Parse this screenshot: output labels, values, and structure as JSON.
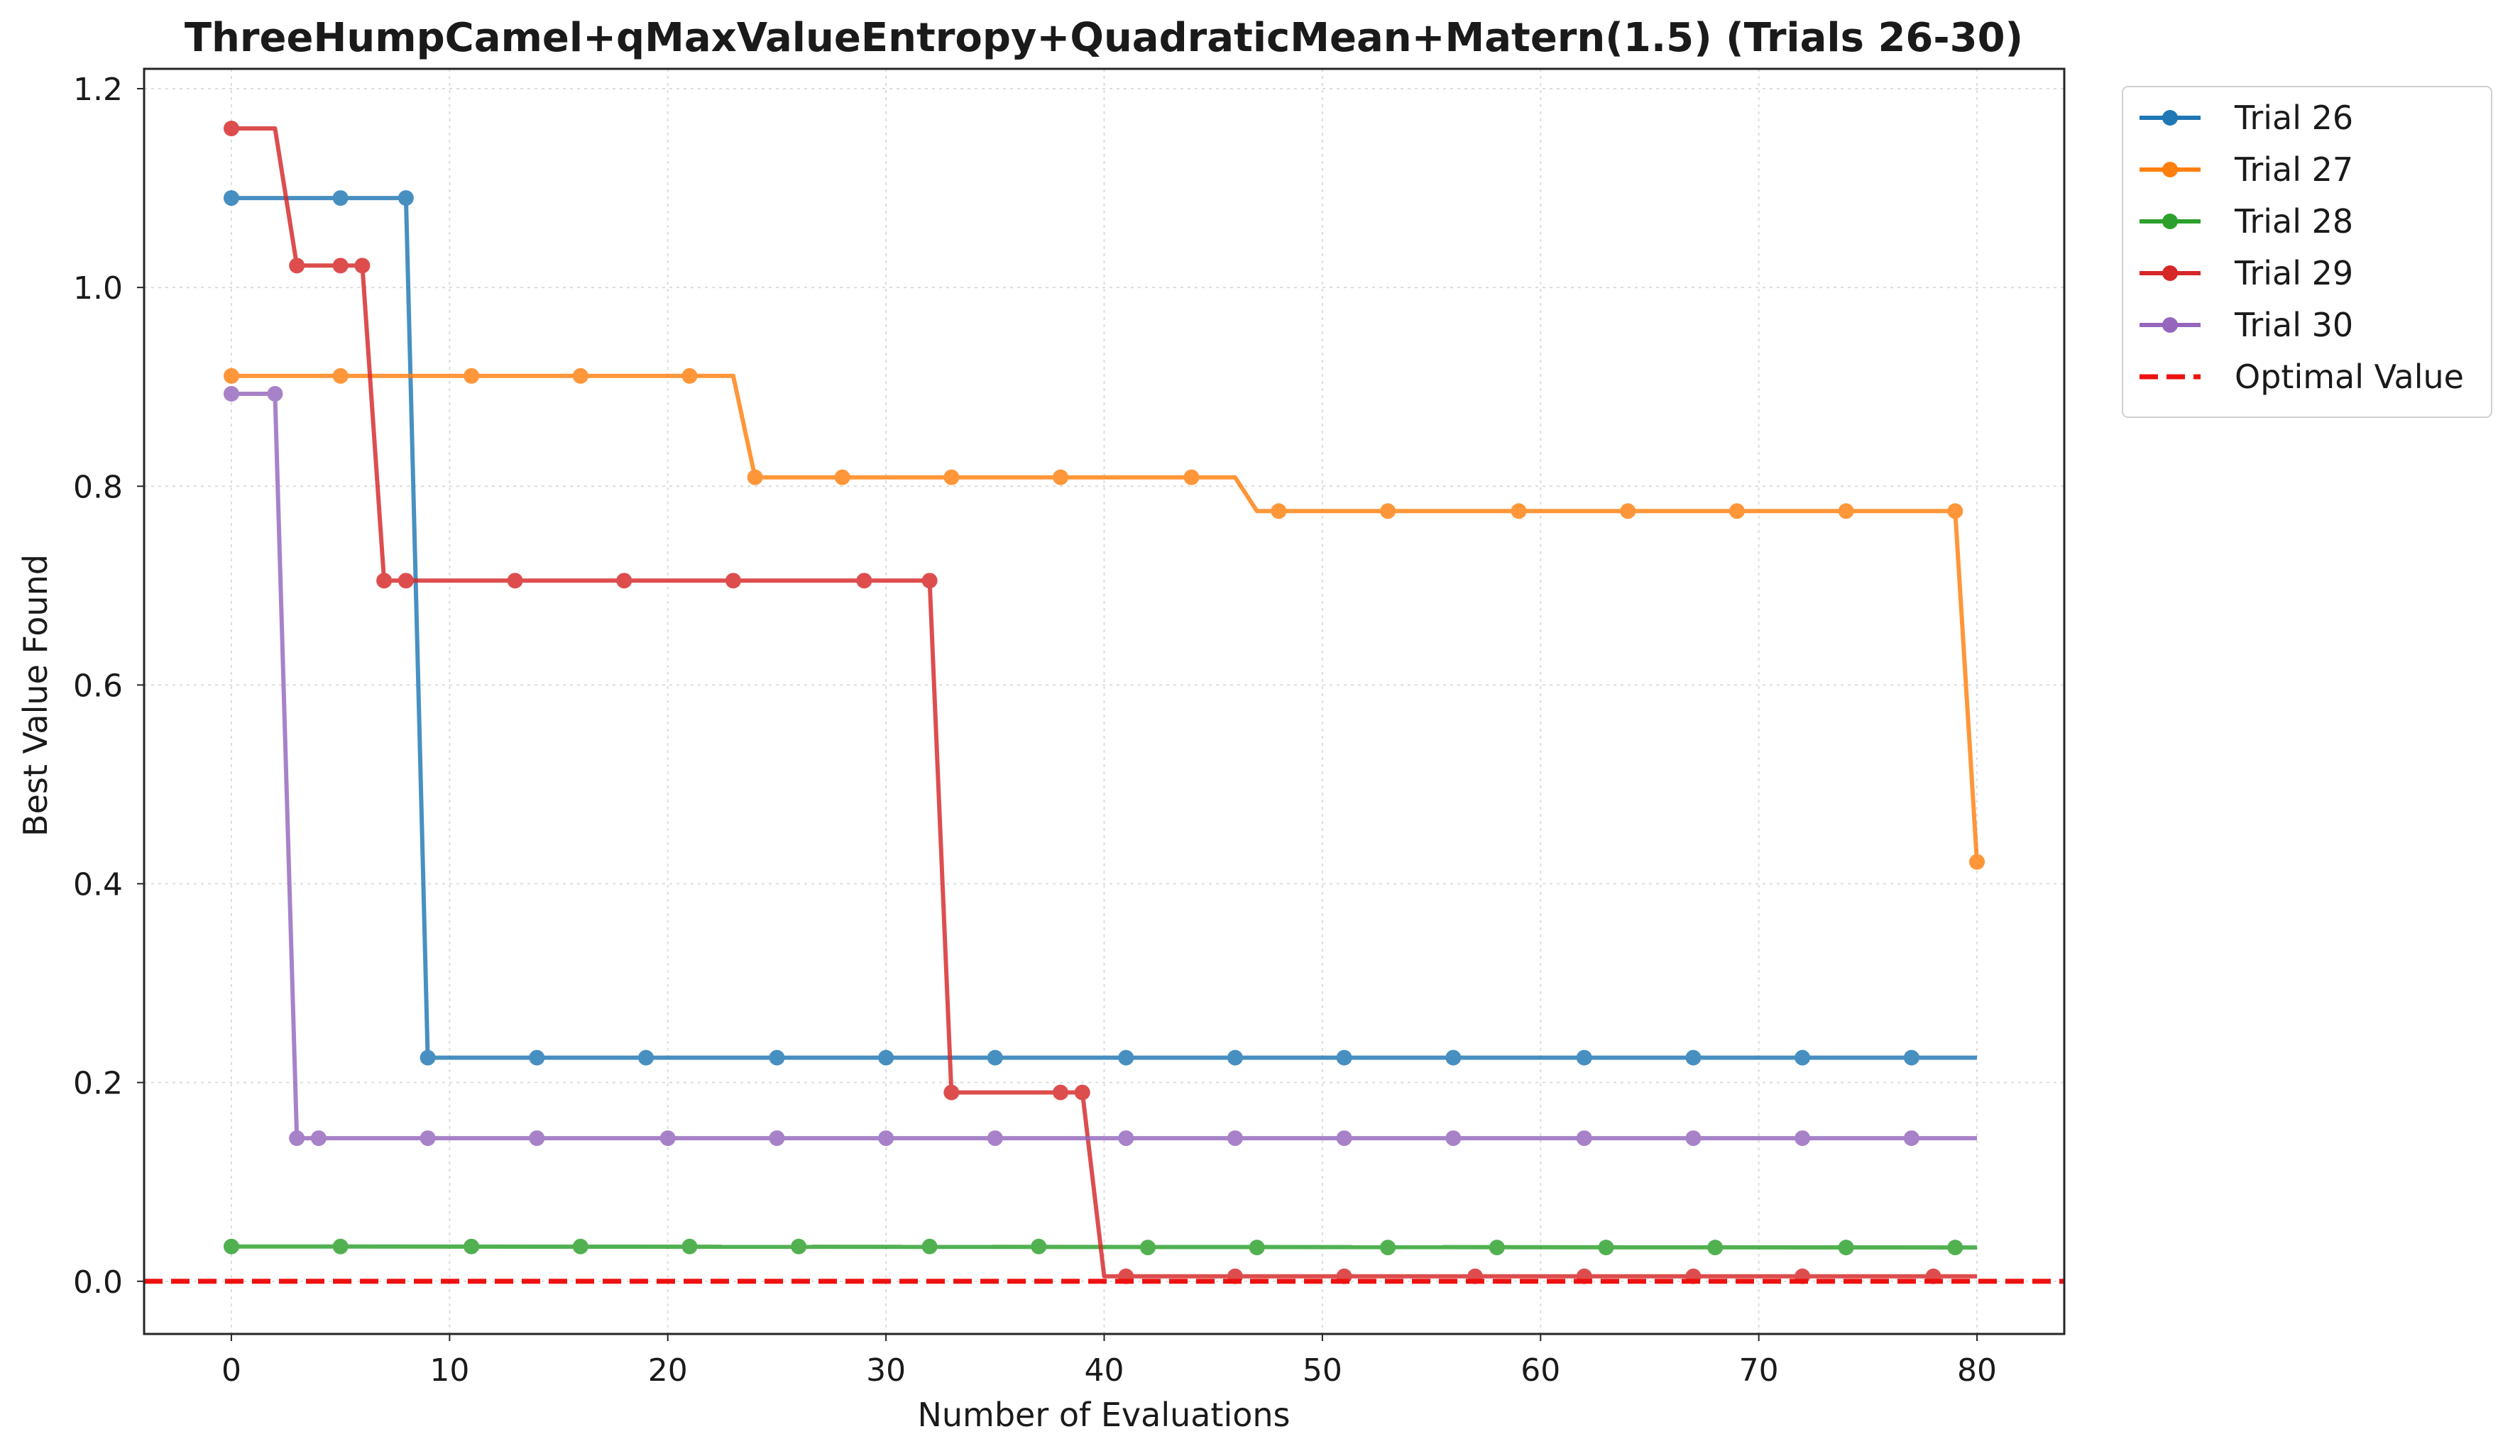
{
  "chart_data": {
    "type": "line",
    "title": "ThreeHumpCamel+qMaxValueEntropy+QuadraticMean+Matern(1.5) (Trials 26-30)",
    "xlabel": "Number of Evaluations",
    "ylabel": "Best Value Found",
    "xlim": [
      -4,
      84
    ],
    "ylim": [
      -0.053,
      1.22
    ],
    "xticks": [
      0,
      10,
      20,
      30,
      40,
      50,
      60,
      70,
      80
    ],
    "yticks": [
      0.0,
      0.2,
      0.4,
      0.6,
      0.8,
      1.0,
      1.2
    ],
    "ytick_labels": [
      "0.0",
      "0.2",
      "0.4",
      "0.6",
      "0.8",
      "1.0",
      "1.2"
    ],
    "grid": true,
    "legend_position": "outside-top-right",
    "series": [
      {
        "name": "Trial 26",
        "color": "#1f77b4",
        "segments": [
          [
            0,
            1.09
          ],
          [
            8,
            1.09
          ],
          [
            9,
            0.225
          ],
          [
            80,
            0.225
          ]
        ],
        "markers": [
          [
            0,
            1.09
          ],
          [
            5,
            1.09
          ],
          [
            8,
            1.09
          ],
          [
            9,
            0.225
          ],
          [
            14,
            0.225
          ],
          [
            19,
            0.225
          ],
          [
            25,
            0.225
          ],
          [
            30,
            0.225
          ],
          [
            35,
            0.225
          ],
          [
            41,
            0.225
          ],
          [
            46,
            0.225
          ],
          [
            51,
            0.225
          ],
          [
            56,
            0.225
          ],
          [
            62,
            0.225
          ],
          [
            67,
            0.225
          ],
          [
            72,
            0.225
          ],
          [
            77,
            0.225
          ]
        ]
      },
      {
        "name": "Trial 27",
        "color": "#ff7f0e",
        "segments": [
          [
            0,
            0.911
          ],
          [
            23,
            0.911
          ],
          [
            24,
            0.809
          ],
          [
            46,
            0.809
          ],
          [
            47,
            0.775
          ],
          [
            79,
            0.775
          ],
          [
            80,
            0.422
          ]
        ],
        "markers": [
          [
            0,
            0.911
          ],
          [
            5,
            0.911
          ],
          [
            11,
            0.911
          ],
          [
            16,
            0.911
          ],
          [
            21,
            0.911
          ],
          [
            24,
            0.809
          ],
          [
            28,
            0.809
          ],
          [
            33,
            0.809
          ],
          [
            38,
            0.809
          ],
          [
            44,
            0.809
          ],
          [
            48,
            0.775
          ],
          [
            53,
            0.775
          ],
          [
            59,
            0.775
          ],
          [
            64,
            0.775
          ],
          [
            69,
            0.775
          ],
          [
            74,
            0.775
          ],
          [
            79,
            0.775
          ],
          [
            80,
            0.422
          ]
        ]
      },
      {
        "name": "Trial 28",
        "color": "#2ca02c",
        "segments": [
          [
            0,
            0.035
          ],
          [
            80,
            0.034
          ]
        ],
        "markers": [
          [
            0,
            0.035
          ],
          [
            5,
            0.035
          ],
          [
            11,
            0.035
          ],
          [
            16,
            0.035
          ],
          [
            21,
            0.035
          ],
          [
            26,
            0.035
          ],
          [
            32,
            0.035
          ],
          [
            37,
            0.035
          ],
          [
            42,
            0.034
          ],
          [
            47,
            0.034
          ],
          [
            53,
            0.034
          ],
          [
            58,
            0.034
          ],
          [
            63,
            0.034
          ],
          [
            68,
            0.034
          ],
          [
            74,
            0.034
          ],
          [
            79,
            0.034
          ]
        ]
      },
      {
        "name": "Trial 29",
        "color": "#d62728",
        "segments": [
          [
            0,
            1.16
          ],
          [
            2,
            1.16
          ],
          [
            3,
            1.022
          ],
          [
            6,
            1.022
          ],
          [
            7,
            0.705
          ],
          [
            32,
            0.705
          ],
          [
            33,
            0.19
          ],
          [
            39,
            0.19
          ],
          [
            40,
            0.005
          ],
          [
            80,
            0.005
          ]
        ],
        "markers": [
          [
            0,
            1.16
          ],
          [
            3,
            1.022
          ],
          [
            5,
            1.022
          ],
          [
            6,
            1.022
          ],
          [
            7,
            0.705
          ],
          [
            8,
            0.705
          ],
          [
            13,
            0.705
          ],
          [
            18,
            0.705
          ],
          [
            23,
            0.705
          ],
          [
            29,
            0.705
          ],
          [
            32,
            0.705
          ],
          [
            33,
            0.19
          ],
          [
            38,
            0.19
          ],
          [
            39,
            0.19
          ],
          [
            41,
            0.005
          ],
          [
            46,
            0.005
          ],
          [
            51,
            0.005
          ],
          [
            57,
            0.005
          ],
          [
            62,
            0.005
          ],
          [
            67,
            0.005
          ],
          [
            72,
            0.005
          ],
          [
            78,
            0.005
          ]
        ]
      },
      {
        "name": "Trial 30",
        "color": "#9467bd",
        "segments": [
          [
            0,
            0.893
          ],
          [
            2,
            0.893
          ],
          [
            3,
            0.144
          ],
          [
            80,
            0.144
          ]
        ],
        "markers": [
          [
            0,
            0.893
          ],
          [
            2,
            0.893
          ],
          [
            3,
            0.144
          ],
          [
            4,
            0.144
          ],
          [
            9,
            0.144
          ],
          [
            14,
            0.144
          ],
          [
            20,
            0.144
          ],
          [
            25,
            0.144
          ],
          [
            30,
            0.144
          ],
          [
            35,
            0.144
          ],
          [
            41,
            0.144
          ],
          [
            46,
            0.144
          ],
          [
            51,
            0.144
          ],
          [
            56,
            0.144
          ],
          [
            62,
            0.144
          ],
          [
            67,
            0.144
          ],
          [
            72,
            0.144
          ],
          [
            77,
            0.144
          ]
        ]
      }
    ],
    "reference_line": {
      "name": "Optimal Value",
      "y": 0.0,
      "color": "#ee1111",
      "style": "dashed"
    }
  }
}
